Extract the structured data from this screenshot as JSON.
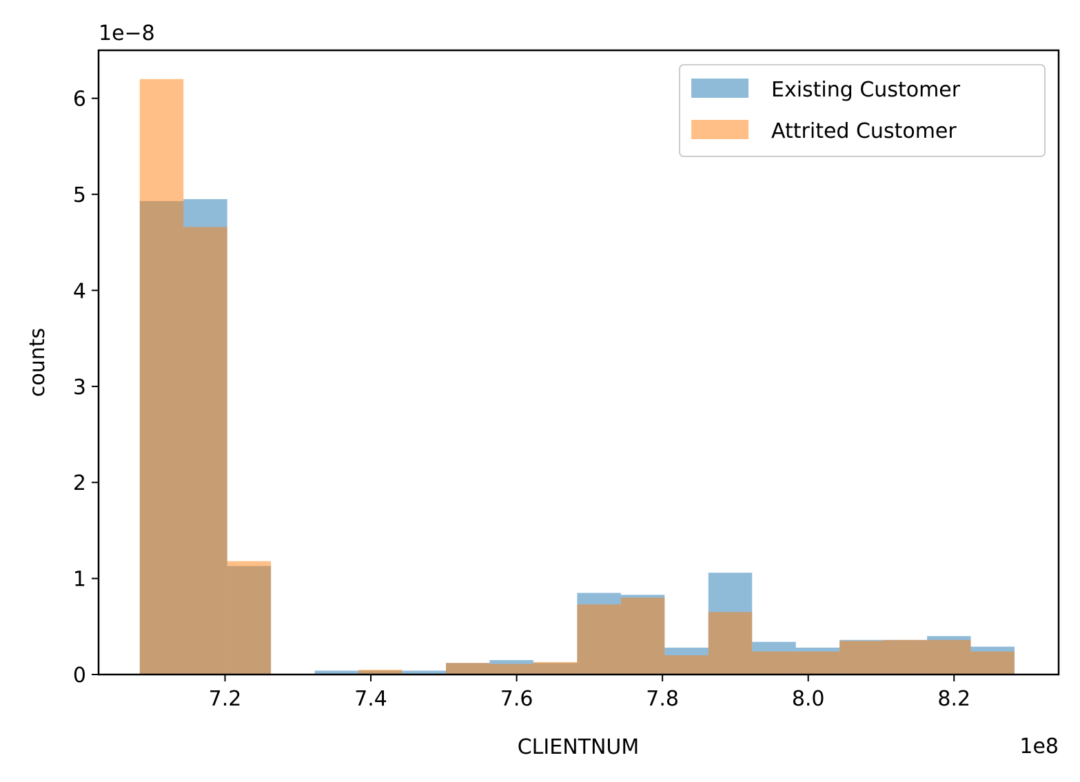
{
  "chart_data": {
    "type": "bar",
    "bins": [
      [
        7.083,
        7.143
      ],
      [
        7.143,
        7.203
      ],
      [
        7.203,
        7.263
      ],
      [
        7.263,
        7.323
      ],
      [
        7.323,
        7.383
      ],
      [
        7.383,
        7.443
      ],
      [
        7.443,
        7.503
      ],
      [
        7.503,
        7.563
      ],
      [
        7.563,
        7.623
      ],
      [
        7.623,
        7.683
      ],
      [
        7.683,
        7.743
      ],
      [
        7.743,
        7.803
      ],
      [
        7.803,
        7.863
      ],
      [
        7.863,
        7.923
      ],
      [
        7.923,
        7.983
      ],
      [
        7.983,
        8.043
      ],
      [
        8.043,
        8.103
      ],
      [
        8.103,
        8.163
      ],
      [
        8.163,
        8.223
      ],
      [
        8.223,
        8.283
      ]
    ],
    "series": [
      {
        "name": "Existing Customer",
        "color": "#1f77b4",
        "values": [
          4.93,
          4.95,
          1.13,
          0.0,
          0.04,
          0.04,
          0.04,
          0.12,
          0.15,
          0.12,
          0.85,
          0.83,
          0.28,
          1.06,
          0.34,
          0.28,
          0.36,
          0.36,
          0.4,
          0.29
        ]
      },
      {
        "name": "Attrited Customer",
        "color": "#ff7f0e",
        "values": [
          6.2,
          4.66,
          1.18,
          0.0,
          0.0,
          0.05,
          0.0,
          0.12,
          0.11,
          0.13,
          0.73,
          0.8,
          0.2,
          0.65,
          0.24,
          0.24,
          0.35,
          0.36,
          0.36,
          0.24
        ]
      }
    ],
    "xlabel": "CLIENTNUM",
    "ylabel": "counts",
    "x_offset_text": "1e8",
    "y_offset_text": "1e−8",
    "xlim": [
      7.0265,
      8.3435
    ],
    "ylim": [
      0,
      6.5
    ],
    "xticks": [
      7.2,
      7.4,
      7.6,
      7.8,
      8.0,
      8.2
    ],
    "xtick_labels": [
      "7.2",
      "7.4",
      "7.6",
      "7.8",
      "8.0",
      "8.2"
    ],
    "yticks": [
      0,
      1,
      2,
      3,
      4,
      5,
      6
    ],
    "ytick_labels": [
      "0",
      "1",
      "2",
      "3",
      "4",
      "5",
      "6"
    ],
    "legend_position": "top-right",
    "grid": false
  }
}
